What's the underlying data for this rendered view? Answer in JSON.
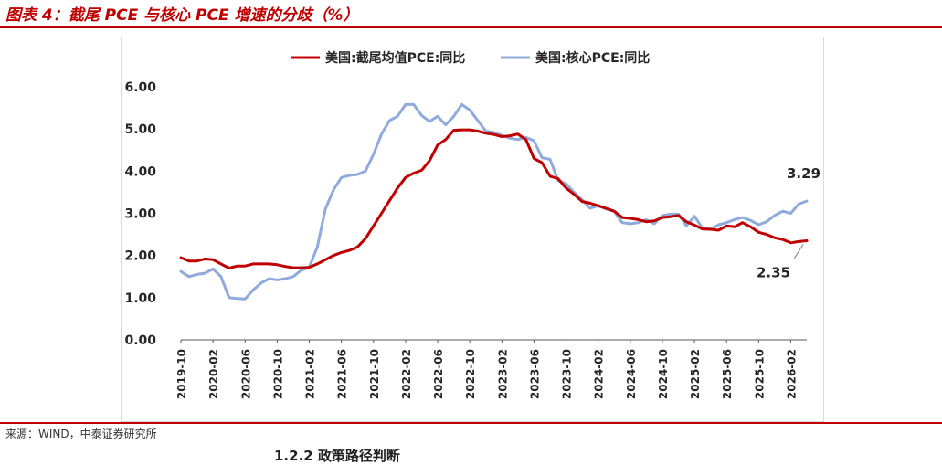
{
  "figure": {
    "title": "图表 4：截尾 PCE 与核心 PCE 增速的分歧（%）",
    "source": "来源：WIND，中泰证券研究所",
    "next_section": "1.2.2 政策路径判断"
  },
  "colors": {
    "trimmed": "#c00000",
    "core": "#8faadc",
    "accent": "#c00000"
  },
  "chart_data": {
    "type": "line",
    "title": "",
    "xlabel": "",
    "ylabel": "",
    "ylim": [
      0,
      6
    ],
    "yticks": [
      "0.00",
      "1.00",
      "2.00",
      "3.00",
      "4.00",
      "5.00",
      "6.00"
    ],
    "grid": false,
    "legend_position": "top",
    "x_tick_labels": [
      "2019-10",
      "2020-02",
      "2020-06",
      "2020-10",
      "2021-02",
      "2021-06",
      "2021-10",
      "2022-02",
      "2022-06",
      "2022-10",
      "2023-02",
      "2023-06",
      "2023-10",
      "2024-02",
      "2024-06",
      "2024-10",
      "2025-02",
      "2025-06",
      "2025-10",
      "2026-02"
    ],
    "x": [
      "2019-10",
      "2019-11",
      "2019-12",
      "2020-01",
      "2020-02",
      "2020-03",
      "2020-04",
      "2020-05",
      "2020-06",
      "2020-07",
      "2020-08",
      "2020-09",
      "2020-10",
      "2020-11",
      "2020-12",
      "2021-01",
      "2021-02",
      "2021-03",
      "2021-04",
      "2021-05",
      "2021-06",
      "2021-07",
      "2021-08",
      "2021-09",
      "2021-10",
      "2021-11",
      "2021-12",
      "2022-01",
      "2022-02",
      "2022-03",
      "2022-04",
      "2022-05",
      "2022-06",
      "2022-07",
      "2022-08",
      "2022-09",
      "2022-10",
      "2022-11",
      "2022-12",
      "2023-01",
      "2023-02",
      "2023-03",
      "2023-04",
      "2023-05",
      "2023-06",
      "2023-07",
      "2023-08",
      "2023-09",
      "2023-10",
      "2023-11",
      "2023-12",
      "2024-01",
      "2024-02",
      "2024-03",
      "2024-04",
      "2024-05",
      "2024-06",
      "2024-07",
      "2024-08",
      "2024-09",
      "2024-10",
      "2024-11",
      "2024-12",
      "2025-01",
      "2025-02",
      "2025-03",
      "2025-04",
      "2025-05",
      "2025-06",
      "2025-07",
      "2025-08",
      "2025-09",
      "2025-10",
      "2025-11",
      "2025-12",
      "2026-01",
      "2026-02",
      "2026-03",
      "2026-04"
    ],
    "series": [
      {
        "name": "美国:截尾均值PCE:同比",
        "color": "#c00000",
        "values": [
          1.95,
          1.87,
          1.87,
          1.92,
          1.9,
          1.8,
          1.7,
          1.75,
          1.75,
          1.8,
          1.8,
          1.8,
          1.78,
          1.74,
          1.71,
          1.71,
          1.72,
          1.8,
          1.9,
          2.0,
          2.07,
          2.12,
          2.2,
          2.4,
          2.7,
          3.0,
          3.3,
          3.6,
          3.85,
          3.95,
          4.02,
          4.25,
          4.62,
          4.75,
          4.97,
          4.98,
          4.98,
          4.95,
          4.9,
          4.87,
          4.82,
          4.84,
          4.88,
          4.75,
          4.3,
          4.2,
          3.88,
          3.82,
          3.6,
          3.45,
          3.28,
          3.24,
          3.18,
          3.12,
          3.05,
          2.9,
          2.88,
          2.85,
          2.8,
          2.82,
          2.9,
          2.92,
          2.95,
          2.8,
          2.72,
          2.63,
          2.62,
          2.6,
          2.7,
          2.68,
          2.78,
          2.68,
          2.55,
          2.5,
          2.42,
          2.38,
          2.3,
          2.33,
          2.35
        ]
      },
      {
        "name": "美国:核心PCE:同比",
        "color": "#8faadc",
        "values": [
          1.62,
          1.5,
          1.55,
          1.58,
          1.68,
          1.5,
          1.0,
          0.98,
          0.97,
          1.18,
          1.35,
          1.45,
          1.42,
          1.45,
          1.5,
          1.65,
          1.72,
          2.2,
          3.1,
          3.55,
          3.85,
          3.9,
          3.92,
          4.0,
          4.4,
          4.88,
          5.2,
          5.3,
          5.58,
          5.58,
          5.32,
          5.18,
          5.3,
          5.1,
          5.3,
          5.58,
          5.45,
          5.2,
          4.95,
          4.92,
          4.85,
          4.78,
          4.75,
          4.8,
          4.72,
          4.32,
          4.28,
          3.78,
          3.7,
          3.5,
          3.32,
          3.12,
          3.18,
          3.1,
          3.05,
          2.78,
          2.75,
          2.78,
          2.85,
          2.75,
          2.95,
          2.98,
          2.98,
          2.7,
          2.93,
          2.65,
          2.62,
          2.73,
          2.78,
          2.85,
          2.9,
          2.83,
          2.73,
          2.8,
          2.95,
          3.05,
          3.0,
          3.22,
          3.29
        ]
      }
    ],
    "annotations": [
      {
        "series": 1,
        "text": "3.29"
      },
      {
        "series": 0,
        "text": "2.35"
      }
    ]
  }
}
